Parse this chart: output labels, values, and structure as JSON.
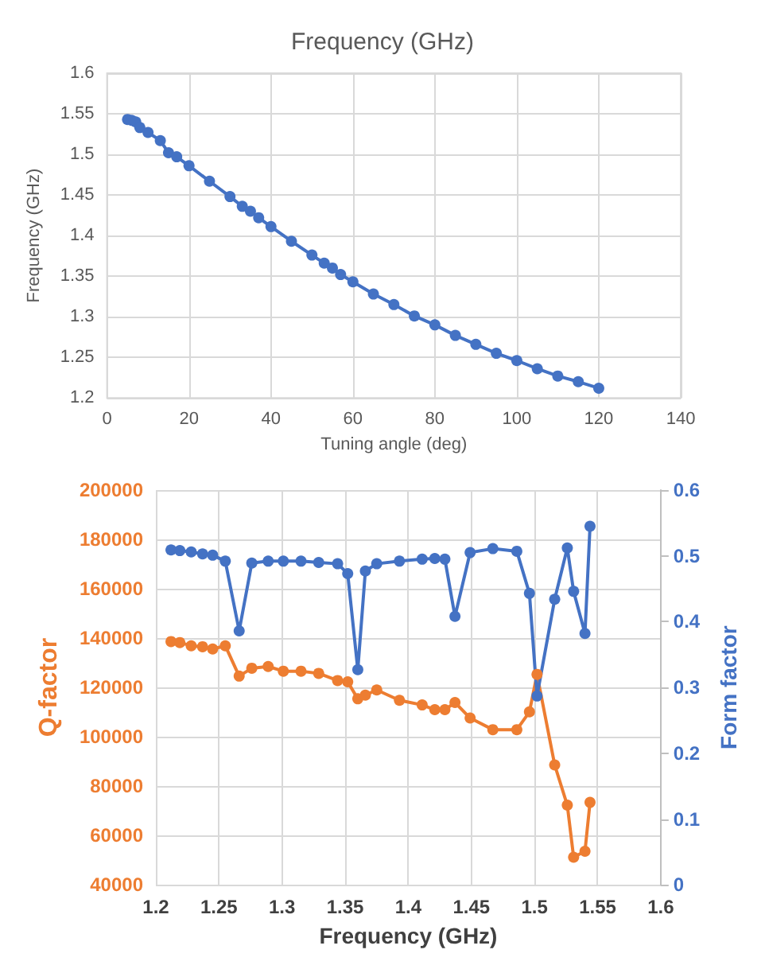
{
  "chart_data": [
    {
      "type": "line",
      "title": "Frequency (GHz)",
      "xlabel": "Tuning angle (deg)",
      "ylabel": "Frequency (GHz)",
      "x": [
        5,
        6,
        7,
        8,
        10,
        13,
        15,
        17,
        20,
        25,
        30,
        33,
        35,
        37,
        40,
        45,
        50,
        53,
        55,
        57,
        60,
        65,
        70,
        75,
        80,
        85,
        90,
        95,
        100,
        105,
        110,
        115,
        120
      ],
      "series": [
        {
          "color": "#4472c4",
          "values": [
            1.543,
            1.542,
            1.54,
            1.533,
            1.527,
            1.517,
            1.502,
            1.497,
            1.486,
            1.467,
            1.448,
            1.436,
            1.43,
            1.422,
            1.411,
            1.393,
            1.376,
            1.366,
            1.36,
            1.352,
            1.343,
            1.328,
            1.315,
            1.301,
            1.29,
            1.277,
            1.266,
            1.255,
            1.246,
            1.236,
            1.227,
            1.22,
            1.212
          ]
        }
      ],
      "xlim": [
        0,
        140
      ],
      "xticks": [
        0,
        20,
        40,
        60,
        80,
        100,
        120,
        140
      ],
      "ylim": [
        1.2,
        1.6
      ],
      "yticks": [
        1.2,
        1.25,
        1.3,
        1.35,
        1.4,
        1.45,
        1.5,
        1.55,
        1.6
      ],
      "grid": true,
      "marker": "circle"
    },
    {
      "type": "line",
      "xlabel": "Frequency (GHz)",
      "ylabel": "Q-factor",
      "y2label": "Form factor",
      "x": [
        1.212,
        1.219,
        1.228,
        1.237,
        1.245,
        1.255,
        1.266,
        1.276,
        1.289,
        1.301,
        1.315,
        1.329,
        1.344,
        1.352,
        1.36,
        1.366,
        1.375,
        1.393,
        1.411,
        1.421,
        1.429,
        1.437,
        1.449,
        1.467,
        1.486,
        1.496,
        1.502,
        1.516,
        1.526,
        1.531,
        1.54,
        1.544
      ],
      "series": [
        {
          "color": "#ed7d31",
          "values": [
            138600,
            138200,
            136900,
            136500,
            135600,
            136900,
            124600,
            127800,
            128500,
            126600,
            126600,
            125700,
            122800,
            122300,
            115400,
            116900,
            119000,
            114800,
            112900,
            111000,
            111000,
            113900,
            107600,
            102900,
            102900,
            110100,
            125300,
            88600,
            72300,
            51200,
            53600,
            73400
          ]
        },
        {
          "color": "#4472c4",
          "axis": "y2",
          "values": [
            0.509,
            0.508,
            0.506,
            0.503,
            0.501,
            0.492,
            0.386,
            0.489,
            0.492,
            0.492,
            0.492,
            0.49,
            0.488,
            0.473,
            0.327,
            0.477,
            0.488,
            0.492,
            0.495,
            0.496,
            0.495,
            0.408,
            0.505,
            0.511,
            0.507,
            0.443,
            0.287,
            0.434,
            0.512,
            0.446,
            0.382,
            0.545
          ]
        }
      ],
      "xlim": [
        1.2,
        1.6
      ],
      "xticks": [
        1.2,
        1.25,
        1.3,
        1.35,
        1.4,
        1.45,
        1.5,
        1.55,
        1.6
      ],
      "ylim": [
        40000,
        200000
      ],
      "yticks": [
        40000,
        60000,
        80000,
        100000,
        120000,
        140000,
        160000,
        180000,
        200000
      ],
      "y2lim": [
        0,
        0.6
      ],
      "y2ticks": [
        0,
        0.1,
        0.2,
        0.3,
        0.4,
        0.5,
        0.6
      ],
      "grid": true,
      "marker": "circle"
    }
  ]
}
